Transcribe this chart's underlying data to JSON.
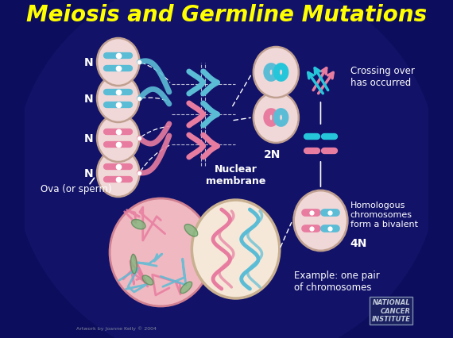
{
  "title": "Meiosis and Germline Mutations",
  "title_color": "#FFFF00",
  "title_fontsize": 20,
  "bg_color": "#0d0d5e",
  "text_color": "#ffffff",
  "pink_color": "#e87ca0",
  "blue_color": "#5bbcd6",
  "teal_color": "#26C6DA",
  "cell_fill": "#f0d8d8",
  "cell_edge": "#c0a090",
  "annotations": {
    "ova_sperm": "Ova (or sperm)",
    "nuclear_membrane": "Nuclear\nmembrane",
    "example": "Example: one pair\nof chromosomes",
    "4N": "4N",
    "homologous": "Homologous\nchromosomes\nform a bivalent",
    "2N": "2N",
    "crossing": "Crossing over\nhas occurred",
    "NCI": "NATIONAL\nCANCER\nINSTITUTE",
    "artwork": "Artwork by Joanne Kelly © 2004"
  }
}
